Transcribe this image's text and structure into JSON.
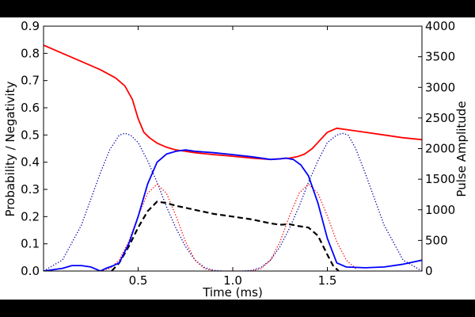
{
  "chart_data": {
    "type": "line",
    "title": "",
    "xlabel": "Time (ms)",
    "ylabel_left": "Probability / Negativity",
    "ylabel_right": "Pulse Amplitude",
    "xlim": [
      0.0,
      2.0
    ],
    "ylim_left": [
      0.0,
      0.9
    ],
    "ylim_right": [
      0,
      4000
    ],
    "x_ticks": [
      0.5,
      1.0,
      1.5
    ],
    "x_tick_labels": [
      "0.5",
      "1.0",
      "1.5"
    ],
    "y_left_ticks": [
      0.0,
      0.1,
      0.2,
      0.3,
      0.4,
      0.5,
      0.6,
      0.7,
      0.8,
      0.9
    ],
    "y_left_tick_labels": [
      "0.0",
      "0.1",
      "0.2",
      "0.3",
      "0.4",
      "0.5",
      "0.6",
      "0.7",
      "0.8",
      "0.9"
    ],
    "y_right_ticks": [
      0,
      500,
      1000,
      1500,
      2000,
      2500,
      3000,
      3500,
      4000
    ],
    "y_right_tick_labels": [
      "0",
      "500",
      "1000",
      "1500",
      "2000",
      "2500",
      "3000",
      "3500",
      "4000"
    ],
    "grid": false,
    "series": [
      {
        "name": "red-solid",
        "axis": "left",
        "color": "#ff0000",
        "style": "solid",
        "x": [
          0.0,
          0.1,
          0.2,
          0.3,
          0.38,
          0.43,
          0.47,
          0.5,
          0.53,
          0.56,
          0.6,
          0.65,
          0.7,
          0.75,
          0.8,
          0.9,
          1.0,
          1.1,
          1.2,
          1.3,
          1.34,
          1.38,
          1.42,
          1.46,
          1.5,
          1.55,
          1.6,
          1.7,
          1.8,
          1.9,
          2.0
        ],
        "y": [
          0.83,
          0.8,
          0.77,
          0.74,
          0.71,
          0.68,
          0.63,
          0.56,
          0.51,
          0.49,
          0.47,
          0.455,
          0.445,
          0.44,
          0.435,
          0.428,
          0.422,
          0.415,
          0.41,
          0.415,
          0.42,
          0.43,
          0.45,
          0.48,
          0.51,
          0.525,
          0.52,
          0.51,
          0.5,
          0.49,
          0.483
        ]
      },
      {
        "name": "blue-solid",
        "axis": "left",
        "color": "#0000ff",
        "style": "solid",
        "x": [
          0.0,
          0.1,
          0.15,
          0.2,
          0.25,
          0.3,
          0.33,
          0.37,
          0.4,
          0.45,
          0.5,
          0.55,
          0.6,
          0.65,
          0.7,
          0.75,
          0.8,
          0.9,
          1.0,
          1.1,
          1.2,
          1.25,
          1.28,
          1.32,
          1.36,
          1.4,
          1.45,
          1.5,
          1.55,
          1.6,
          1.7,
          1.8,
          1.9,
          2.0
        ],
        "y": [
          0.0,
          0.01,
          0.02,
          0.02,
          0.015,
          0.0,
          0.01,
          0.02,
          0.03,
          0.1,
          0.2,
          0.32,
          0.4,
          0.43,
          0.44,
          0.445,
          0.44,
          0.435,
          0.428,
          0.42,
          0.41,
          0.412,
          0.415,
          0.41,
          0.39,
          0.35,
          0.25,
          0.12,
          0.03,
          0.015,
          0.012,
          0.015,
          0.025,
          0.04
        ]
      },
      {
        "name": "black-dashed",
        "axis": "left",
        "color": "#000000",
        "style": "dashed",
        "x": [
          0.36,
          0.4,
          0.45,
          0.5,
          0.55,
          0.6,
          0.65,
          0.7,
          0.8,
          0.9,
          1.0,
          1.1,
          1.2,
          1.25,
          1.3,
          1.35,
          1.4,
          1.45,
          1.5,
          1.53,
          1.56
        ],
        "y": [
          0.0,
          0.03,
          0.09,
          0.16,
          0.22,
          0.255,
          0.25,
          0.24,
          0.225,
          0.21,
          0.2,
          0.19,
          0.175,
          0.17,
          0.172,
          0.165,
          0.16,
          0.13,
          0.06,
          0.02,
          0.0
        ]
      },
      {
        "name": "red-dotted",
        "axis": "right",
        "color": "#ff0000",
        "style": "dotted",
        "x": [
          0.3,
          0.35,
          0.4,
          0.45,
          0.5,
          0.55,
          0.6,
          0.65,
          0.7,
          0.75,
          0.8,
          0.85,
          0.9,
          1.0,
          1.1,
          1.15,
          1.2,
          1.25,
          1.3,
          1.35,
          1.4,
          1.45,
          1.5,
          1.55,
          1.6,
          1.65
        ],
        "y": [
          0,
          40,
          180,
          480,
          900,
          1270,
          1420,
          1270,
          900,
          480,
          180,
          40,
          0,
          0,
          0,
          40,
          180,
          480,
          900,
          1270,
          1420,
          1270,
          900,
          480,
          180,
          40
        ]
      },
      {
        "name": "blue-dotted",
        "axis": "right",
        "color": "#0000aa",
        "style": "dotted",
        "x": [
          0.0,
          0.1,
          0.2,
          0.3,
          0.35,
          0.4,
          0.43,
          0.46,
          0.5,
          0.55,
          0.6,
          0.65,
          0.7,
          0.75,
          0.8,
          0.85,
          0.9,
          0.95,
          1.0,
          1.05,
          1.1,
          1.15,
          1.2,
          1.25,
          1.3,
          1.35,
          1.4,
          1.45,
          1.5,
          1.55,
          1.58,
          1.61,
          1.65,
          1.7,
          1.8,
          1.9,
          2.0
        ],
        "y": [
          0,
          180,
          750,
          1600,
          1980,
          2220,
          2250,
          2220,
          2100,
          1800,
          1450,
          1050,
          700,
          400,
          180,
          60,
          10,
          0,
          0,
          0,
          10,
          60,
          180,
          400,
          700,
          1050,
          1450,
          1800,
          2100,
          2220,
          2250,
          2220,
          2000,
          1600,
          750,
          180,
          0
        ]
      }
    ]
  }
}
